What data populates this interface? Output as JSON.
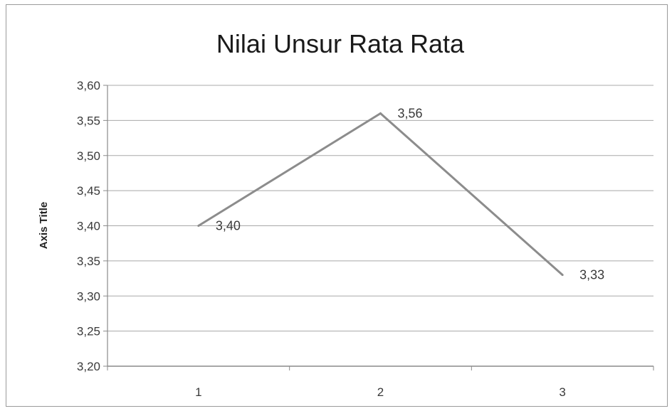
{
  "chart_data": {
    "type": "line",
    "title": "Nilai Unsur Rata Rata",
    "xlabel": "",
    "ylabel": "Axis Title",
    "categories": [
      "1",
      "2",
      "3"
    ],
    "series": [
      {
        "values": [
          3.4,
          3.56,
          3.33
        ],
        "data_labels": [
          "3,40",
          "3,56",
          "3,33"
        ],
        "color": "#8c8c8c"
      }
    ],
    "ylim": [
      3.2,
      3.6
    ],
    "yticks": [
      "3,20",
      "3,25",
      "3,30",
      "3,35",
      "3,40",
      "3,45",
      "3,50",
      "3,55",
      "3,60"
    ],
    "grid": true,
    "legend": "none"
  }
}
